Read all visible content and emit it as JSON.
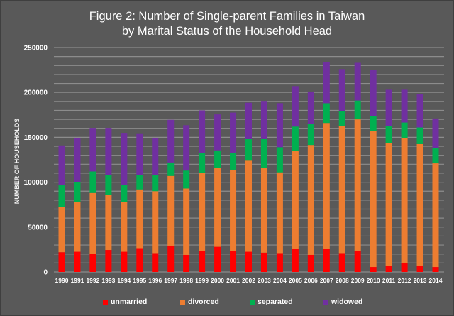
{
  "chart_data": {
    "type": "bar",
    "stacked": true,
    "title": "Figure 2: Number of Single-parent Families in Taiwan by Marital Status of the Household Head",
    "title_lines": [
      "Figure 2: Number of Single-parent Families in Taiwan",
      "by Marital Status of the Household Head"
    ],
    "xlabel": "",
    "ylabel": "NUMBER OF HOUSEHOLDS",
    "ylim": [
      0,
      250000
    ],
    "yticks": [
      0,
      50000,
      100000,
      150000,
      200000,
      250000
    ],
    "ytick_labels": [
      "0",
      "50000",
      "100000",
      "150000",
      "200000",
      "250000"
    ],
    "minor_gridline_step": 10000,
    "grid": true,
    "legend_position": "bottom",
    "categories": [
      "1990",
      "1991",
      "1992",
      "1993",
      "1994",
      "1995",
      "1996",
      "1997",
      "1998",
      "1999",
      "2000",
      "2001",
      "2002",
      "2003",
      "2004",
      "2005",
      "2006",
      "2007",
      "2008",
      "2009",
      "2010",
      "2011",
      "2012",
      "2013",
      "2014"
    ],
    "series": [
      {
        "name": "unmarried",
        "color": "#ff0000",
        "values": [
          22000,
          22500,
          20000,
          24500,
          22500,
          26500,
          21000,
          28500,
          19000,
          23500,
          28000,
          23000,
          22500,
          21500,
          21000,
          25500,
          19000,
          25500,
          21000,
          23500,
          5500,
          6500,
          10000,
          6500,
          5500
        ]
      },
      {
        "name": "divorced",
        "color": "#ed7d31",
        "values": [
          50000,
          55500,
          68000,
          61500,
          55500,
          65500,
          69000,
          78500,
          74000,
          86500,
          88000,
          91000,
          101500,
          94000,
          90000,
          109000,
          122500,
          140500,
          142000,
          146500,
          152000,
          137000,
          139000,
          136000,
          115500
        ]
      },
      {
        "name": "separated",
        "color": "#00b050",
        "values": [
          24500,
          22500,
          24000,
          22000,
          19000,
          16000,
          18000,
          15000,
          20000,
          23000,
          19500,
          19000,
          24000,
          32500,
          28000,
          27500,
          23500,
          22000,
          16000,
          21000,
          16000,
          19500,
          17500,
          18500,
          17000
        ]
      },
      {
        "name": "widowed",
        "color": "#7030a0",
        "values": [
          44500,
          49000,
          48500,
          52500,
          58000,
          46500,
          41000,
          47500,
          50500,
          47000,
          40000,
          44500,
          40500,
          42500,
          49000,
          45000,
          36000,
          45500,
          47000,
          42000,
          51500,
          40000,
          36500,
          37500,
          33000
        ]
      }
    ]
  }
}
